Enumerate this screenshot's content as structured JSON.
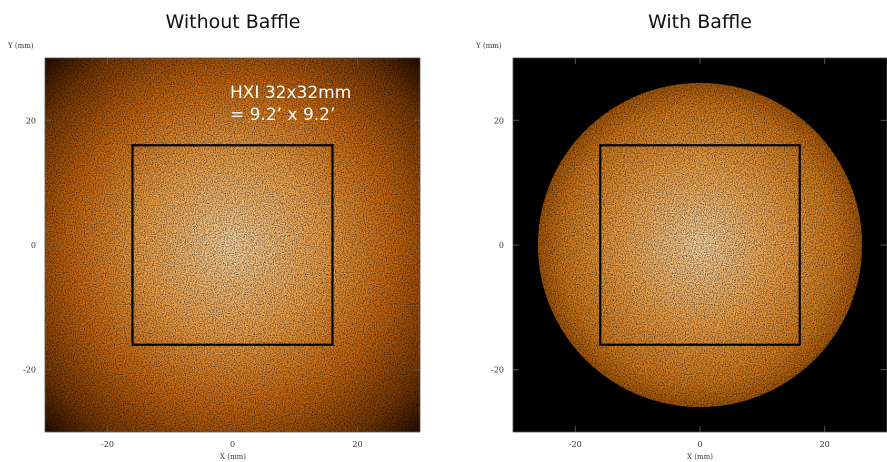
{
  "panels": [
    {
      "title": "Without Baffle",
      "y_label": "Y (mm)",
      "x_label": "X (mm)",
      "xlim": [
        -30,
        30
      ],
      "ylim": [
        -30,
        30
      ],
      "xticks": [
        -20,
        0,
        20
      ],
      "yticks": [
        -20,
        0,
        20
      ],
      "annotation": [
        "HXI 32x32mm",
        "= 9.2’ x 9.2’"
      ],
      "box": [
        -16,
        16
      ]
    },
    {
      "title": "With Baffle",
      "y_label": "Y (mm)",
      "x_label": "X (mm)",
      "xlim": [
        -30,
        30
      ],
      "ylim": [
        -30,
        30
      ],
      "xticks": [
        -20,
        0,
        20
      ],
      "yticks": [
        -20,
        0,
        20
      ],
      "box": [
        -16,
        16
      ],
      "baffle_radius": 26
    }
  ]
}
